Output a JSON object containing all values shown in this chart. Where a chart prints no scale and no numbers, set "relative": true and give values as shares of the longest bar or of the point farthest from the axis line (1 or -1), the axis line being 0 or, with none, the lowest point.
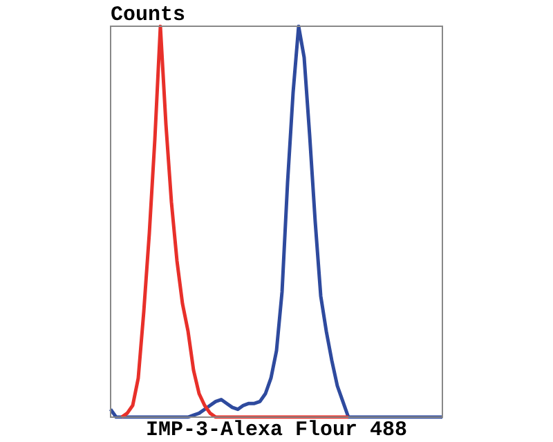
{
  "chart_data": {
    "type": "line",
    "relative": true,
    "ylabel": "Counts",
    "xlabel": "IMP-3-Alexa Flour 488",
    "categories": [
      null,
      null,
      null,
      null,
      null,
      null,
      null,
      null,
      null,
      null,
      null,
      null,
      null,
      null,
      null,
      null,
      null,
      null,
      null,
      null,
      null,
      null,
      null,
      null,
      null,
      null,
      null,
      null,
      null,
      null,
      null,
      null,
      null,
      null,
      null,
      null,
      null,
      null,
      null,
      null,
      null,
      null,
      null,
      null,
      null,
      null,
      null,
      null,
      null,
      null,
      null,
      null,
      null,
      null,
      null,
      null,
      null,
      null,
      null,
      null,
      null
    ],
    "series": [
      {
        "color": "#e8302a",
        "values": [
          null,
          null,
          0,
          0.01,
          0.03,
          0.1,
          0.27,
          0.47,
          0.71,
          1,
          0.75,
          0.55,
          0.4,
          0.29,
          0.22,
          0.12,
          0.06,
          0.03,
          0.01,
          0,
          0,
          0,
          0,
          0,
          0,
          0,
          0,
          0,
          0,
          0,
          0,
          0,
          0,
          0,
          0,
          0,
          0,
          0,
          0,
          0,
          0,
          0,
          0,
          0,
          null,
          null,
          null,
          null,
          null,
          null,
          null,
          null,
          null,
          null,
          null,
          null,
          null,
          null,
          null,
          null,
          null
        ]
      },
      {
        "color": "#2e4a9e",
        "values": [
          0.02,
          0,
          0,
          0,
          0,
          0,
          0,
          0,
          0,
          0,
          0,
          0,
          0,
          0,
          0,
          0.005,
          0.01,
          0.02,
          0.03,
          0.04,
          0.045,
          0.035,
          0.025,
          0.02,
          0.03,
          0.035,
          0.035,
          0.04,
          0.06,
          0.1,
          0.17,
          0.32,
          0.6,
          0.83,
          1,
          0.92,
          0.72,
          0.5,
          0.31,
          0.22,
          0.145,
          0.08,
          0.04,
          0,
          0,
          0,
          0,
          0,
          0,
          0,
          0,
          0,
          0,
          0,
          0,
          0,
          0,
          0,
          0,
          0,
          0
        ]
      }
    ],
    "grid": false,
    "legend": false
  }
}
